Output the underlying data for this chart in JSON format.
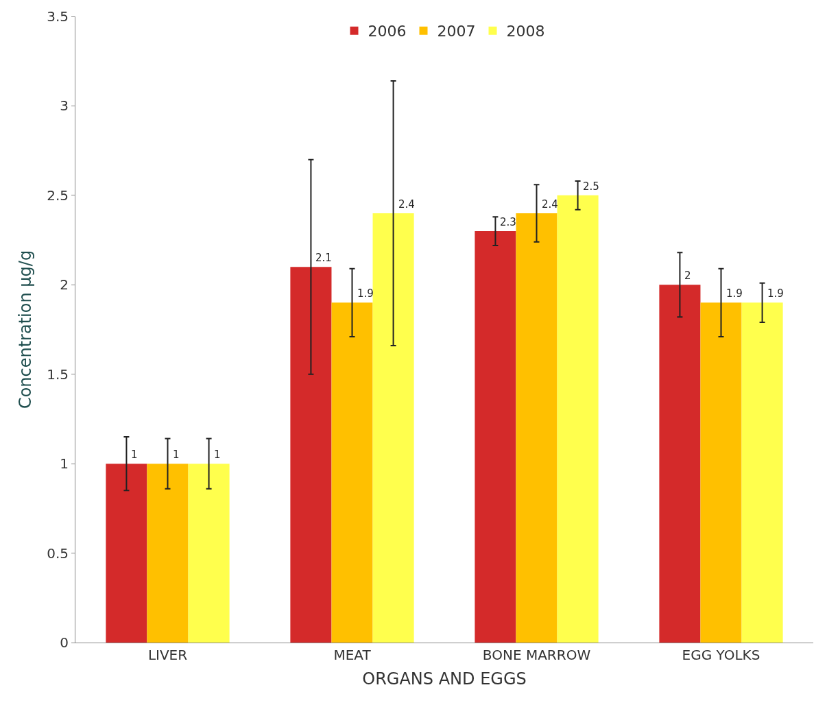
{
  "chart_data": {
    "type": "bar",
    "xlabel": "ORGANS AND EGGS",
    "ylabel": "Concentration µg/g",
    "categories": [
      "LIVER",
      "MEAT",
      "BONE MARROW",
      "EGG YOLKS"
    ],
    "series": [
      {
        "name": "2006",
        "color": "#d42a2a",
        "values": [
          1,
          2.1,
          2.3,
          2
        ],
        "errors": [
          0.15,
          0.6,
          0.08,
          0.18
        ]
      },
      {
        "name": "2007",
        "color": "#ffc000",
        "values": [
          1,
          1.9,
          2.4,
          1.9
        ],
        "errors": [
          0.14,
          0.19,
          0.16,
          0.19
        ]
      },
      {
        "name": "2008",
        "color": "#ffff4d",
        "values": [
          1,
          2.4,
          2.5,
          1.9
        ],
        "errors": [
          0.14,
          0.74,
          0.08,
          0.11
        ]
      }
    ],
    "ylim": [
      0,
      3.5
    ],
    "yticks": [
      0,
      0.5,
      1,
      1.5,
      2,
      2.5,
      3,
      3.5
    ],
    "data_labels": true,
    "legend": "top"
  }
}
